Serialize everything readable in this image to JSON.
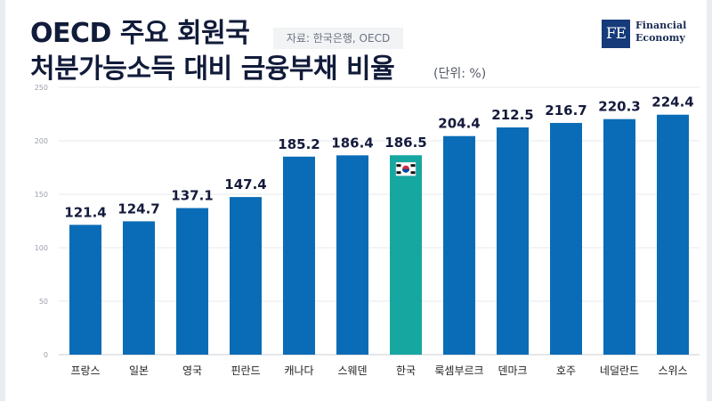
{
  "header": {
    "title_line1": "OECD 주요 회원국",
    "title_line2": "처분가능소득 대비 금융부채 비율",
    "source": "자료: 한국은행, OECD",
    "unit": "(단위: %)",
    "logo_mark": "FE",
    "logo_line1": "Financial",
    "logo_line2": "Economy"
  },
  "colors": {
    "bar": "#0a6cb6",
    "highlight": "#16a7a0",
    "label": "#141a3c",
    "axis": "#9aa0aa",
    "grid": "#e6e8ec"
  },
  "chart_data": {
    "type": "bar",
    "categories": [
      "프랑스",
      "일본",
      "영국",
      "핀란드",
      "캐나다",
      "스웨덴",
      "한국",
      "룩셈부르크",
      "덴마크",
      "호주",
      "네덜란드",
      "스위스"
    ],
    "values": [
      121.4,
      124.7,
      137.1,
      147.4,
      185.2,
      186.4,
      186.5,
      204.4,
      212.5,
      216.7,
      220.3,
      224.4
    ],
    "data_labels": [
      "121.4",
      "124.7",
      "137.1",
      "147.4",
      "185.2",
      "186.4",
      "186.5",
      "204.4",
      "212.5",
      "216.7",
      "220.3",
      "224.4"
    ],
    "highlight": "한국",
    "highlight_icon": "korea-flag-icon",
    "ylim": [
      0,
      250
    ],
    "yticks": [
      0,
      50,
      100,
      150,
      200,
      250
    ],
    "grid": true,
    "legend": "none"
  }
}
